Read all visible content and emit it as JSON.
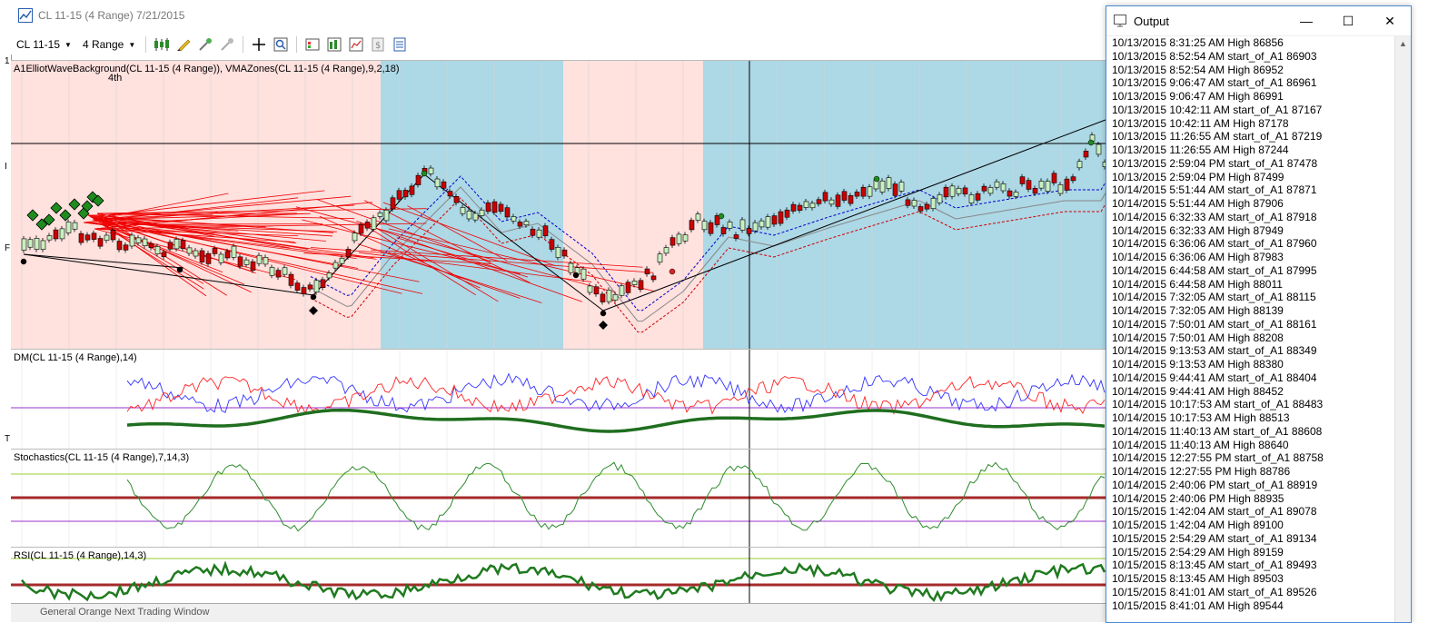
{
  "window": {
    "title": "CL 11-15 (4 Range)  7/21/2015"
  },
  "toolbar": {
    "instrument": "CL 11-15",
    "period": "4 Range"
  },
  "panels": {
    "price": {
      "label": "A1ElliotWaveBackground(CL 11-15 (4 Range)), VMAZones(CL 11-15 (4 Range),9,2,18)",
      "sublabel": "4th"
    },
    "dm": {
      "label": "DM(CL 11-15 (4 Range),14)"
    },
    "stoch": {
      "label": "Stochastics(CL 11-15 (4 Range),7,14,3)"
    },
    "rsi": {
      "label": "RSI(CL 11-15 (4 Range),14,3)"
    }
  },
  "status": {
    "text": "General   Orange   Next   Trading   Window"
  },
  "left_markers": [
    "1",
    "I",
    "F",
    "T"
  ],
  "colors": {
    "pink_zone": "#ffe1de",
    "blue_zone": "#add8e6",
    "candle_up": "#c8f0c0",
    "candle_down": "#cc0000",
    "dm_plus": "#3333ff",
    "dm_minus": "#ff2222",
    "adx": "#1f6e1f",
    "stoch": "#2e8b2e",
    "rsi": "#1f7a1f",
    "level_line": "#a52a2a"
  },
  "output": {
    "title": "Output",
    "lines": [
      "10/13/2015 8:31:25 AM High 86856",
      "10/13/2015 8:52:54 AM start_of_A1 86903",
      "10/13/2015 8:52:54 AM High 86952",
      "10/13/2015 9:06:47 AM start_of_A1 86961",
      "10/13/2015 9:06:47 AM High 86991",
      "10/13/2015 10:42:11 AM start_of_A1 87167",
      "10/13/2015 10:42:11 AM High 87178",
      "10/13/2015 11:26:55 AM start_of_A1 87219",
      "10/13/2015 11:26:55 AM High 87244",
      "10/13/2015 2:59:04 PM start_of_A1 87478",
      "10/13/2015 2:59:04 PM High 87499",
      "10/14/2015 5:51:44 AM start_of_A1 87871",
      "10/14/2015 5:51:44 AM High 87906",
      "10/14/2015 6:32:33 AM start_of_A1 87918",
      "10/14/2015 6:32:33 AM High 87949",
      "10/14/2015 6:36:06 AM start_of_A1 87960",
      "10/14/2015 6:36:06 AM High 87983",
      "10/14/2015 6:44:58 AM start_of_A1 87995",
      "10/14/2015 6:44:58 AM High 88011",
      "10/14/2015 7:32:05 AM start_of_A1 88115",
      "10/14/2015 7:32:05 AM High 88139",
      "10/14/2015 7:50:01 AM start_of_A1 88161",
      "10/14/2015 7:50:01 AM High 88208",
      "10/14/2015 9:13:53 AM start_of_A1 88349",
      "10/14/2015 9:13:53 AM High 88380",
      "10/14/2015 9:44:41 AM start_of_A1 88404",
      "10/14/2015 9:44:41 AM High 88452",
      "10/14/2015 10:17:53 AM start_of_A1 88483",
      "10/14/2015 10:17:53 AM High 88513",
      "10/14/2015 11:40:13 AM start_of_A1 88608",
      "10/14/2015 11:40:13 AM High 88640",
      "10/14/2015 12:27:55 PM start_of_A1 88758",
      "10/14/2015 12:27:55 PM High 88786",
      "10/14/2015 2:40:06 PM start_of_A1 88919",
      "10/14/2015 2:40:06 PM High 88935",
      "10/15/2015 1:42:04 AM start_of_A1 89078",
      "10/15/2015 1:42:04 AM High 89100",
      "10/15/2015 2:54:29 AM start_of_A1 89134",
      "10/15/2015 2:54:29 AM High 89159",
      "10/15/2015 8:13:45 AM start_of_A1 89493",
      "10/15/2015 8:13:45 AM High 89503",
      "10/15/2015 8:41:01 AM start_of_A1 89526",
      "10/15/2015 8:41:01 AM High 89544"
    ]
  }
}
